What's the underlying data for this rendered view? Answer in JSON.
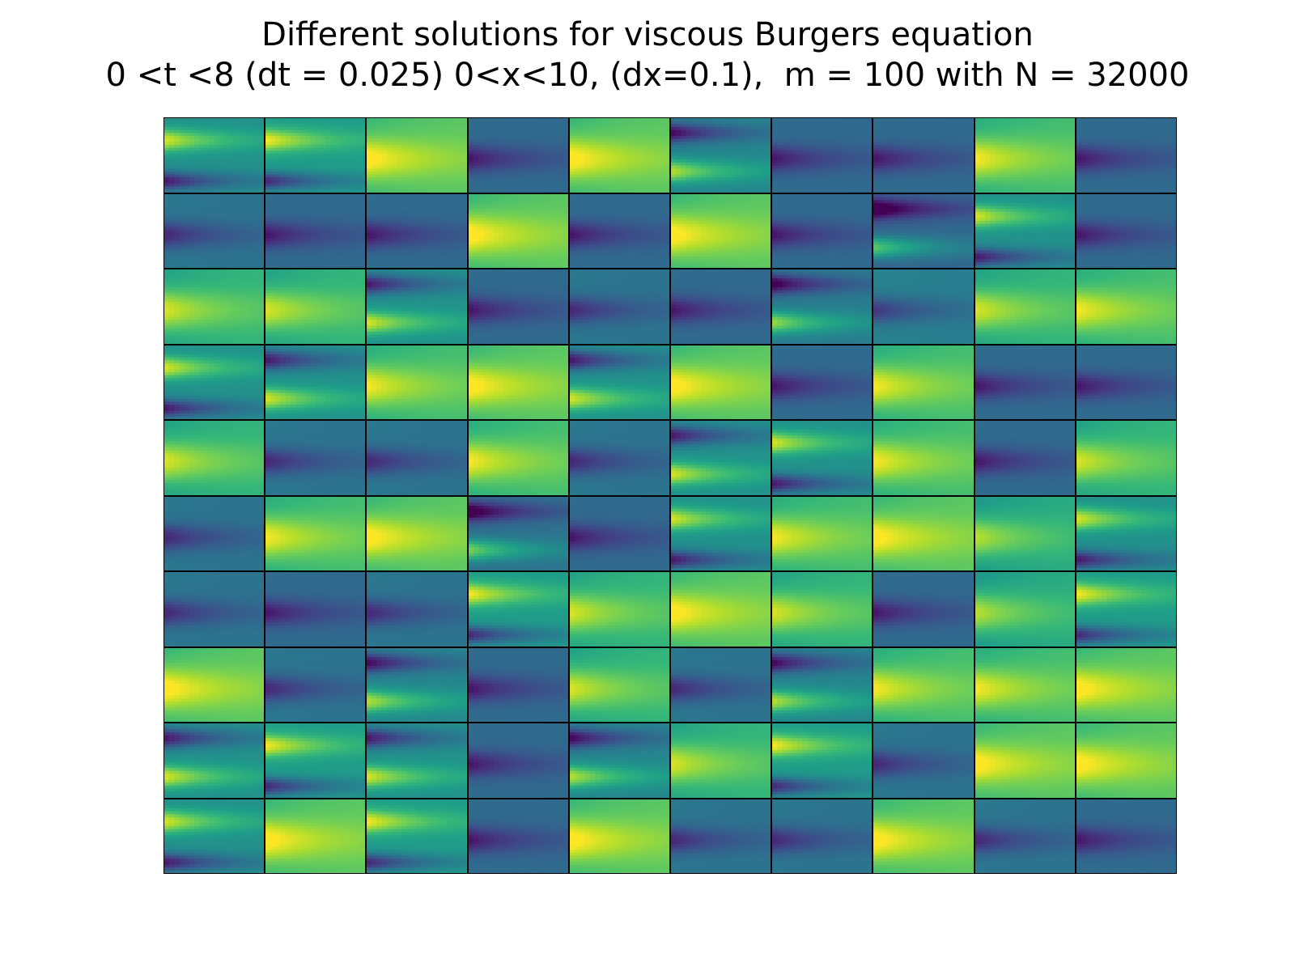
{
  "chart_data": {
    "type": "heatmap",
    "title": "Different solutions for viscous Burgers equation",
    "subtitle": "0 <t <8 (dt = 0.025) 0<x<10, (dx=0.1),  m = 100 with N = 32000",
    "rows": 10,
    "cols": 10,
    "colormap": "viridis",
    "axes_visible": false,
    "xlabel": "",
    "ylabel": "",
    "panels": [
      [
        {
          "pattern": "yellow-top-purple-bottom",
          "mean": 0.5
        },
        {
          "pattern": "yellow-top-purple-bottom",
          "mean": 0.55
        },
        {
          "pattern": "yellow-center",
          "mean": 0.8
        },
        {
          "pattern": "purple-center",
          "mean": 0.3
        },
        {
          "pattern": "yellow-center",
          "mean": 0.8
        },
        {
          "pattern": "purple-top-yellow-bottom",
          "mean": 0.45
        },
        {
          "pattern": "purple-center",
          "mean": 0.3
        },
        {
          "pattern": "purple-center",
          "mean": 0.3
        },
        {
          "pattern": "yellow-center",
          "mean": 0.75
        },
        {
          "pattern": "purple-center",
          "mean": 0.3
        }
      ],
      [
        {
          "pattern": "purple-center",
          "mean": 0.35
        },
        {
          "pattern": "purple-center",
          "mean": 0.3
        },
        {
          "pattern": "purple-center",
          "mean": 0.3
        },
        {
          "pattern": "yellow-center",
          "mean": 0.8
        },
        {
          "pattern": "purple-center",
          "mean": 0.3
        },
        {
          "pattern": "yellow-center",
          "mean": 0.8
        },
        {
          "pattern": "purple-center",
          "mean": 0.3
        },
        {
          "pattern": "purple-top-yellow-bottom",
          "mean": 0.3
        },
        {
          "pattern": "yellow-top-purple-bottom",
          "mean": 0.5
        },
        {
          "pattern": "purple-center",
          "mean": 0.3
        }
      ],
      [
        {
          "pattern": "yellow-center",
          "mean": 0.7
        },
        {
          "pattern": "yellow-center",
          "mean": 0.7
        },
        {
          "pattern": "purple-top-yellow-bottom",
          "mean": 0.5
        },
        {
          "pattern": "purple-center",
          "mean": 0.3
        },
        {
          "pattern": "purple-center",
          "mean": 0.35
        },
        {
          "pattern": "purple-center",
          "mean": 0.3
        },
        {
          "pattern": "purple-top-yellow-bottom",
          "mean": 0.4
        },
        {
          "pattern": "purple-center",
          "mean": 0.4
        },
        {
          "pattern": "yellow-center",
          "mean": 0.7
        },
        {
          "pattern": "yellow-center",
          "mean": 0.75
        }
      ],
      [
        {
          "pattern": "yellow-top-purple-bottom",
          "mean": 0.5
        },
        {
          "pattern": "purple-top-yellow-bottom",
          "mean": 0.5
        },
        {
          "pattern": "yellow-center",
          "mean": 0.75
        },
        {
          "pattern": "yellow-center",
          "mean": 0.8
        },
        {
          "pattern": "purple-top-yellow-bottom",
          "mean": 0.5
        },
        {
          "pattern": "yellow-center",
          "mean": 0.8
        },
        {
          "pattern": "purple-center",
          "mean": 0.3
        },
        {
          "pattern": "yellow-center",
          "mean": 0.75
        },
        {
          "pattern": "purple-center",
          "mean": 0.3
        },
        {
          "pattern": "purple-center",
          "mean": 0.3
        }
      ],
      [
        {
          "pattern": "yellow-center",
          "mean": 0.7
        },
        {
          "pattern": "purple-center",
          "mean": 0.35
        },
        {
          "pattern": "purple-center",
          "mean": 0.35
        },
        {
          "pattern": "yellow-center",
          "mean": 0.75
        },
        {
          "pattern": "purple-center",
          "mean": 0.35
        },
        {
          "pattern": "purple-top-yellow-bottom",
          "mean": 0.5
        },
        {
          "pattern": "yellow-top-purple-bottom",
          "mean": 0.5
        },
        {
          "pattern": "yellow-center",
          "mean": 0.75
        },
        {
          "pattern": "purple-center",
          "mean": 0.3
        },
        {
          "pattern": "yellow-center",
          "mean": 0.7
        }
      ],
      [
        {
          "pattern": "purple-center",
          "mean": 0.35
        },
        {
          "pattern": "yellow-center",
          "mean": 0.75
        },
        {
          "pattern": "yellow-center",
          "mean": 0.8
        },
        {
          "pattern": "purple-top-yellow-bottom",
          "mean": 0.35
        },
        {
          "pattern": "purple-center",
          "mean": 0.3
        },
        {
          "pattern": "yellow-top-purple-bottom",
          "mean": 0.5
        },
        {
          "pattern": "yellow-center",
          "mean": 0.75
        },
        {
          "pattern": "yellow-center",
          "mean": 0.8
        },
        {
          "pattern": "yellow-center",
          "mean": 0.65
        },
        {
          "pattern": "yellow-top-purple-bottom",
          "mean": 0.5
        }
      ],
      [
        {
          "pattern": "purple-center",
          "mean": 0.35
        },
        {
          "pattern": "purple-center",
          "mean": 0.3
        },
        {
          "pattern": "purple-center",
          "mean": 0.35
        },
        {
          "pattern": "yellow-top-purple-bottom",
          "mean": 0.55
        },
        {
          "pattern": "yellow-center",
          "mean": 0.7
        },
        {
          "pattern": "yellow-center",
          "mean": 0.8
        },
        {
          "pattern": "yellow-center",
          "mean": 0.7
        },
        {
          "pattern": "purple-center",
          "mean": 0.3
        },
        {
          "pattern": "yellow-center",
          "mean": 0.65
        },
        {
          "pattern": "yellow-top-purple-bottom",
          "mean": 0.55
        }
      ],
      [
        {
          "pattern": "yellow-center",
          "mean": 0.8
        },
        {
          "pattern": "purple-center",
          "mean": 0.35
        },
        {
          "pattern": "purple-top-yellow-bottom",
          "mean": 0.45
        },
        {
          "pattern": "purple-center",
          "mean": 0.3
        },
        {
          "pattern": "yellow-center",
          "mean": 0.7
        },
        {
          "pattern": "purple-center",
          "mean": 0.35
        },
        {
          "pattern": "purple-top-yellow-bottom",
          "mean": 0.45
        },
        {
          "pattern": "yellow-center",
          "mean": 0.75
        },
        {
          "pattern": "yellow-center",
          "mean": 0.75
        },
        {
          "pattern": "yellow-center",
          "mean": 0.8
        }
      ],
      [
        {
          "pattern": "purple-top-yellow-bottom",
          "mean": 0.5
        },
        {
          "pattern": "yellow-top-purple-bottom",
          "mean": 0.55
        },
        {
          "pattern": "purple-top-yellow-bottom",
          "mean": 0.5
        },
        {
          "pattern": "purple-center",
          "mean": 0.3
        },
        {
          "pattern": "purple-top-yellow-bottom",
          "mean": 0.45
        },
        {
          "pattern": "yellow-center",
          "mean": 0.7
        },
        {
          "pattern": "yellow-top-purple-bottom",
          "mean": 0.55
        },
        {
          "pattern": "purple-center",
          "mean": 0.35
        },
        {
          "pattern": "yellow-center",
          "mean": 0.8
        },
        {
          "pattern": "yellow-center",
          "mean": 0.8
        }
      ],
      [
        {
          "pattern": "yellow-top-purple-bottom",
          "mean": 0.5
        },
        {
          "pattern": "yellow-center",
          "mean": 0.8
        },
        {
          "pattern": "yellow-top-purple-bottom",
          "mean": 0.55
        },
        {
          "pattern": "purple-center",
          "mean": 0.3
        },
        {
          "pattern": "yellow-center",
          "mean": 0.8
        },
        {
          "pattern": "purple-center",
          "mean": 0.35
        },
        {
          "pattern": "purple-center",
          "mean": 0.35
        },
        {
          "pattern": "yellow-center",
          "mean": 0.8
        },
        {
          "pattern": "purple-center",
          "mean": 0.35
        },
        {
          "pattern": "purple-center",
          "mean": 0.3
        }
      ]
    ]
  }
}
